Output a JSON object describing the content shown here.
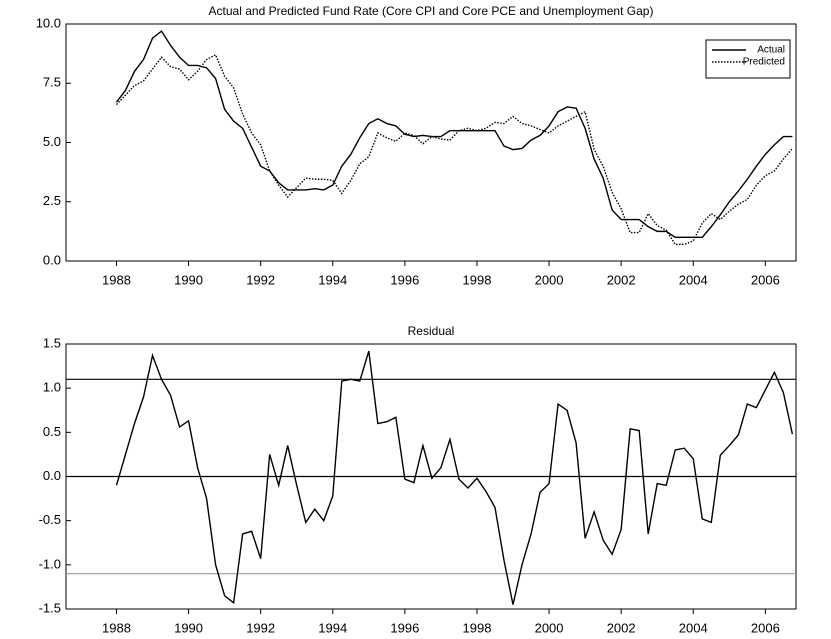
{
  "chart_data": [
    {
      "type": "line",
      "title": "Actual and Predicted Fund Rate (Core CPI and Core PCE and Unemployment Gap)",
      "x": [
        1988,
        1988.25,
        1988.5,
        1988.75,
        1989,
        1989.25,
        1989.5,
        1989.75,
        1990,
        1990.25,
        1990.5,
        1990.75,
        1991,
        1991.25,
        1991.5,
        1991.75,
        1992,
        1992.25,
        1992.5,
        1992.75,
        1993,
        1993.25,
        1993.5,
        1993.75,
        1994,
        1994.25,
        1994.5,
        1994.75,
        1995,
        1995.25,
        1995.5,
        1995.75,
        1996,
        1996.25,
        1996.5,
        1996.75,
        1997,
        1997.25,
        1997.5,
        1997.75,
        1998,
        1998.25,
        1998.5,
        1998.75,
        1999,
        1999.25,
        1999.5,
        1999.75,
        2000,
        2000.25,
        2000.5,
        2000.75,
        2001,
        2001.25,
        2001.5,
        2001.75,
        2002,
        2002.25,
        2002.5,
        2002.75,
        2003,
        2003.25,
        2003.5,
        2003.75,
        2004,
        2004.25,
        2004.5,
        2004.75,
        2005,
        2005.25,
        2005.5,
        2005.75,
        2006,
        2006.25,
        2006.5,
        2006.75
      ],
      "series": [
        {
          "name": "Actual",
          "color": "#000000",
          "style": "solid",
          "values": [
            6.7,
            7.2,
            8.0,
            8.5,
            9.4,
            9.7,
            9.1,
            8.6,
            8.25,
            8.25,
            8.15,
            7.7,
            6.4,
            5.9,
            5.6,
            4.8,
            4.0,
            3.8,
            3.3,
            3.0,
            3.0,
            3.0,
            3.05,
            3.0,
            3.2,
            4.0,
            4.5,
            5.2,
            5.8,
            6.0,
            5.8,
            5.7,
            5.35,
            5.25,
            5.3,
            5.25,
            5.25,
            5.5,
            5.5,
            5.5,
            5.5,
            5.5,
            5.5,
            4.85,
            4.7,
            4.75,
            5.1,
            5.3,
            5.7,
            6.3,
            6.5,
            6.45,
            5.6,
            4.3,
            3.5,
            2.15,
            1.75,
            1.75,
            1.75,
            1.45,
            1.25,
            1.25,
            1.0,
            1.0,
            1.0,
            1.0,
            1.45,
            1.95,
            2.5,
            2.95,
            3.45,
            4.0,
            4.5,
            4.9,
            5.25,
            5.25
          ]
        },
        {
          "name": "Predicted",
          "color": "#000000",
          "style": "dotted",
          "values": [
            6.6,
            7.0,
            7.4,
            7.6,
            8.1,
            8.6,
            8.2,
            8.1,
            7.65,
            8.0,
            8.5,
            8.7,
            7.8,
            7.3,
            6.2,
            5.4,
            4.9,
            3.8,
            3.2,
            2.7,
            3.1,
            3.5,
            3.45,
            3.45,
            3.4,
            2.85,
            3.4,
            4.1,
            4.4,
            5.4,
            5.2,
            5.05,
            5.4,
            5.3,
            4.95,
            5.25,
            5.15,
            5.1,
            5.5,
            5.6,
            5.5,
            5.6,
            5.85,
            5.8,
            6.1,
            5.8,
            5.7,
            5.55,
            5.4,
            5.7,
            5.9,
            6.1,
            6.3,
            4.7,
            4.0,
            2.9,
            2.2,
            1.2,
            1.2,
            2.0,
            1.5,
            1.3,
            0.7,
            0.7,
            0.85,
            1.6,
            2.0,
            1.75,
            2.1,
            2.4,
            2.6,
            3.2,
            3.6,
            3.8,
            4.3,
            4.75
          ]
        }
      ],
      "xlim": [
        1986.6,
        2006.85
      ],
      "xticks": [
        1988,
        1990,
        1992,
        1994,
        1996,
        1998,
        2000,
        2002,
        2004,
        2006
      ],
      "ylim": [
        0,
        10
      ],
      "yticks": [
        {
          "value": 0,
          "label": "0.0"
        },
        {
          "value": 2.5,
          "label": "2.5"
        },
        {
          "value": 5,
          "label": "5.0"
        },
        {
          "value": 7.5,
          "label": "7.5"
        },
        {
          "value": 10,
          "label": "10.0"
        }
      ],
      "legend": "upper right"
    },
    {
      "type": "line",
      "title": "Residual",
      "x": [
        1988,
        1988.25,
        1988.5,
        1988.75,
        1989,
        1989.25,
        1989.5,
        1989.75,
        1990,
        1990.25,
        1990.5,
        1990.75,
        1991,
        1991.25,
        1991.5,
        1991.75,
        1992,
        1992.25,
        1992.5,
        1992.75,
        1993,
        1993.25,
        1993.5,
        1993.75,
        1994,
        1994.25,
        1994.5,
        1994.75,
        1995,
        1995.25,
        1995.5,
        1995.75,
        1996,
        1996.25,
        1996.5,
        1996.75,
        1997,
        1997.25,
        1997.5,
        1997.75,
        1998,
        1998.25,
        1998.5,
        1998.75,
        1999,
        1999.25,
        1999.5,
        1999.75,
        2000,
        2000.25,
        2000.5,
        2000.75,
        2001,
        2001.25,
        2001.5,
        2001.75,
        2002,
        2002.25,
        2002.5,
        2002.75,
        2003,
        2003.25,
        2003.5,
        2003.75,
        2004,
        2004.25,
        2004.5,
        2004.75,
        2005,
        2005.25,
        2005.5,
        2005.75,
        2006,
        2006.25,
        2006.5,
        2006.75
      ],
      "values": [
        -0.1,
        0.25,
        0.6,
        0.9,
        1.37,
        1.1,
        0.92,
        0.56,
        0.63,
        0.1,
        -0.25,
        -1.0,
        -1.35,
        -1.43,
        -0.65,
        -0.62,
        -0.93,
        0.25,
        -0.1,
        0.35,
        -0.1,
        -0.52,
        -0.37,
        -0.5,
        -0.22,
        1.08,
        1.1,
        1.08,
        1.42,
        0.6,
        0.62,
        0.67,
        -0.03,
        -0.07,
        0.35,
        -0.02,
        0.1,
        0.42,
        -0.03,
        -0.13,
        -0.02,
        -0.17,
        -0.35,
        -0.95,
        -1.45,
        -1.0,
        -0.65,
        -0.18,
        -0.08,
        0.82,
        0.75,
        0.38,
        -0.7,
        -0.4,
        -0.72,
        -0.88,
        -0.6,
        0.54,
        0.52,
        -0.65,
        -0.08,
        -0.1,
        0.3,
        0.32,
        0.2,
        -0.48,
        -0.52,
        0.24,
        0.35,
        0.47,
        0.82,
        0.78,
        0.98,
        1.18,
        0.95,
        0.48
      ],
      "color": "#000000",
      "hlines": [
        {
          "value": 1.1,
          "color": "#000000"
        },
        {
          "value": 0,
          "color": "#000000"
        },
        {
          "value": -1.1,
          "color": "#999999"
        }
      ],
      "xlim": [
        1986.6,
        2006.85
      ],
      "xticks": [
        1988,
        1990,
        1992,
        1994,
        1996,
        1998,
        2000,
        2002,
        2004,
        2006
      ],
      "ylim": [
        -1.5,
        1.5
      ],
      "yticks": [
        {
          "value": -1.5,
          "label": "-1.5"
        },
        {
          "value": -1,
          "label": "-1.0"
        },
        {
          "value": -0.5,
          "label": "-0.5"
        },
        {
          "value": 0,
          "label": "0.0"
        },
        {
          "value": 0.5,
          "label": "0.5"
        },
        {
          "value": 1,
          "label": "1.0"
        },
        {
          "value": 1.5,
          "label": "1.5"
        }
      ]
    }
  ]
}
